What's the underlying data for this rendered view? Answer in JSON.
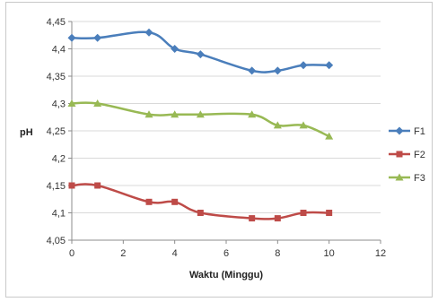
{
  "chart_data": {
    "type": "line",
    "title": "",
    "xlabel": "Waktu (Minggu)",
    "ylabel": "pH",
    "xlim": [
      0,
      12
    ],
    "ylim": [
      4.05,
      4.45
    ],
    "x_ticks": [
      "0",
      "2",
      "4",
      "6",
      "8",
      "10",
      "12"
    ],
    "y_ticks": [
      "4,05",
      "4,1",
      "4,15",
      "4,2",
      "4,25",
      "4,3",
      "4,35",
      "4,4",
      "4,45"
    ],
    "grid": "horizontal",
    "legend_position": "right",
    "x": [
      0,
      1,
      3,
      4,
      5,
      7,
      8,
      9,
      10
    ],
    "series": [
      {
        "name": "F1",
        "color": "#4a7ebb",
        "marker": "diamond",
        "values": [
          4.42,
          4.42,
          4.43,
          4.4,
          4.39,
          4.36,
          4.36,
          4.37,
          4.37
        ]
      },
      {
        "name": "F2",
        "color": "#be4b48",
        "marker": "square",
        "values": [
          4.15,
          4.15,
          4.12,
          4.12,
          4.1,
          4.09,
          4.09,
          4.1,
          4.1
        ]
      },
      {
        "name": "F3",
        "color": "#98b954",
        "marker": "triangle",
        "values": [
          4.3,
          4.3,
          4.28,
          4.28,
          4.28,
          4.28,
          4.26,
          4.26,
          4.24
        ]
      }
    ]
  }
}
